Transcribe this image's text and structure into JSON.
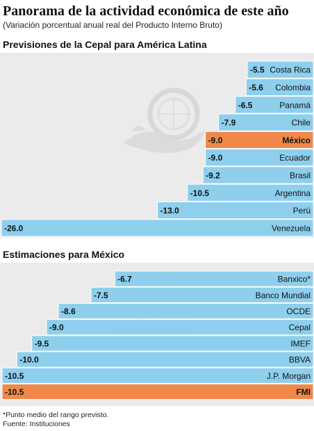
{
  "header": {
    "title": "Panorama de la actividad económica de este año",
    "subtitle": "(Variación porcentual anual real del Producto Interno Bruto)"
  },
  "colors": {
    "bar": "#8ecfee",
    "highlight": "#f0884a",
    "panel": "#ebebeb"
  },
  "chart_data": [
    {
      "type": "bar",
      "orientation": "horizontal",
      "title": "Previsiones de la Cepal para América Latina",
      "categories": [
        "Costa Rica",
        "Colombia",
        "Panamá",
        "Chile",
        "México",
        "Ecuador",
        "Brasil",
        "Argentina",
        "Perú",
        "Venezuela"
      ],
      "values": [
        -5.5,
        -5.6,
        -6.5,
        -7.9,
        -9.0,
        -9.0,
        -9.2,
        -10.5,
        -13.0,
        -26.0
      ],
      "value_labels": [
        "-5.5",
        "-5.6",
        "-6.5",
        "-7.9",
        "-9.0",
        "-9.0",
        "-9.2",
        "-10.5",
        "-13.0",
        "-26.0"
      ],
      "highlight": "México",
      "xlim": [
        -26.0,
        0
      ]
    },
    {
      "type": "bar",
      "orientation": "horizontal",
      "title": "Estimaciones para México",
      "categories": [
        "Banxico*",
        "Banco Mundial",
        "OCDE",
        "Cepal",
        "IMEF",
        "BBVA",
        "J.P. Morgan",
        "FMI"
      ],
      "values": [
        -6.7,
        -7.5,
        -8.6,
        -9.0,
        -9.5,
        -10.0,
        -10.5,
        -10.5
      ],
      "value_labels": [
        "-6.7",
        "-7.5",
        "-8.6",
        "-9.0",
        "-9.5",
        "-10.0",
        "-10.5",
        "-10.5"
      ],
      "highlight": "FMI",
      "xlim": [
        -10.5,
        0
      ]
    }
  ],
  "notes": {
    "footnote": "*Punto medio del rango previsto.",
    "source": "Fuente: Instituciones"
  }
}
